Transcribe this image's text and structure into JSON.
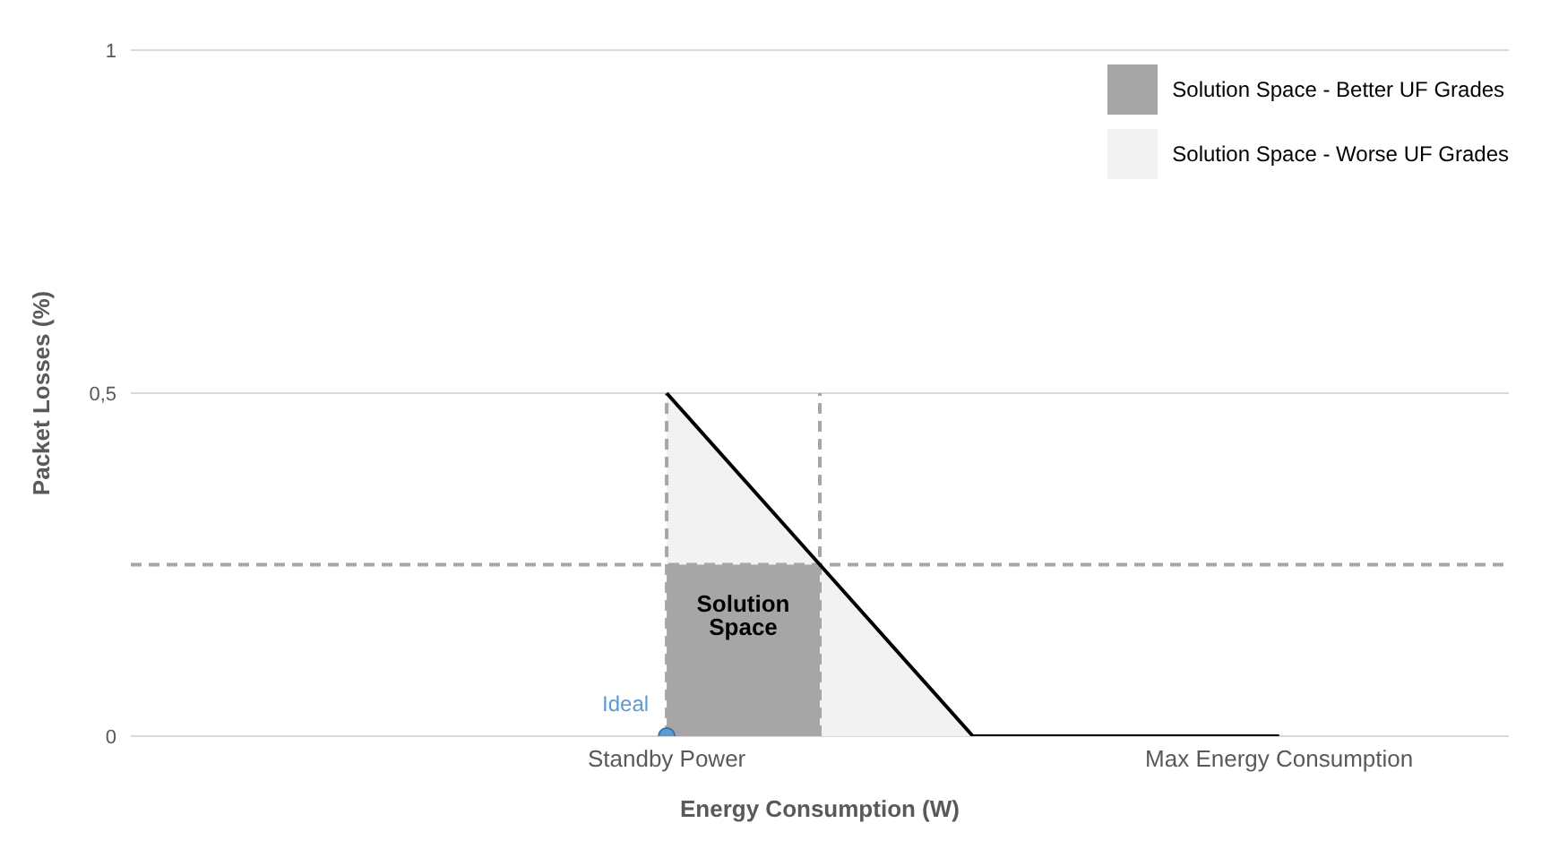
{
  "chart_data": {
    "type": "line",
    "xlabel": "Energy Consumption (W)",
    "ylabel": "Packet Losses (%)",
    "categories": [
      null,
      null,
      null,
      "Standby Power",
      null,
      null,
      null,
      "Max Energy Consumption",
      null
    ],
    "ylim": [
      0,
      1
    ],
    "yticks": [
      0,
      {
        "value": 0.5,
        "label": "0,5"
      },
      1
    ],
    "grid": "y",
    "legend": "top right",
    "series": [
      {
        "type": "area",
        "name": "Solution Space - Worse UF Grades",
        "color": "#f2f2f2",
        "values": [
          null,
          null,
          null,
          0.5,
          0.25,
          0,
          null,
          null,
          null
        ]
      },
      {
        "type": "area",
        "name": "Solution Space - Better UF Grades",
        "color": "#a6a6a6",
        "values": [
          null,
          null,
          null,
          0.25,
          0.25,
          null,
          null,
          null,
          null
        ]
      },
      {
        "color": "#000000",
        "values": [
          null,
          null,
          null,
          0.5,
          0.25,
          0,
          0,
          0,
          null
        ]
      },
      {
        "type": "scatter",
        "color": "#5b9bd5",
        "values": [
          null,
          null,
          null,
          0,
          null,
          null,
          null,
          null,
          null
        ]
      }
    ],
    "ref_lines": [
      {
        "axis": "x",
        "value": "Standby Power",
        "color": "#a6a6a6",
        "line_style": "dashed"
      },
      {
        "axis": "y",
        "value": 0.25,
        "color": "#a6a6a6",
        "line_style": "dashed"
      }
    ],
    "annotations": [
      {
        "text": "Ideal",
        "x": "Standby Power",
        "y": 0
      },
      "Solution Space"
    ]
  }
}
